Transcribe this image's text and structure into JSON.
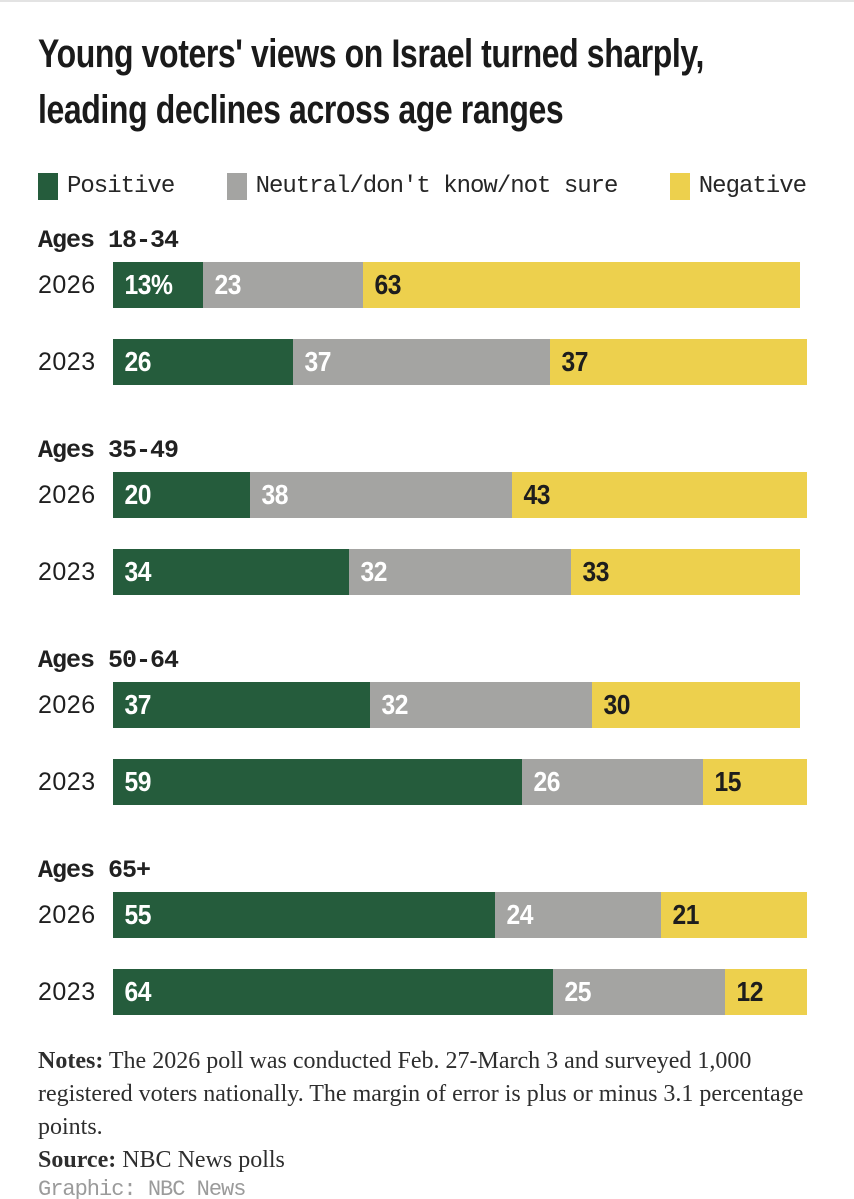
{
  "title": {
    "line1": "Young voters' views on Israel turned sharply,",
    "line2": "leading declines across age ranges"
  },
  "colors": {
    "positive": "#255c3c",
    "neutral": "#a4a4a2",
    "negative": "#edd04d",
    "label_on_dark": "#ffffff",
    "label_on_yellow": "#1d1d1d"
  },
  "legend": {
    "items": [
      {
        "key": "positive",
        "label": "Positive"
      },
      {
        "key": "neutral",
        "label": "Neutral/don't know/not sure"
      },
      {
        "key": "negative",
        "label": "Negative"
      }
    ]
  },
  "chart_data": {
    "type": "bar",
    "orientation": "horizontal",
    "stacked": true,
    "unit": "percent",
    "xlim": [
      0,
      100
    ],
    "legend_position": "top",
    "series_labels": [
      "Positive",
      "Neutral/don't know/not sure",
      "Negative"
    ],
    "groups": [
      {
        "label": "Ages 18-34",
        "rows": [
          {
            "year": "2026",
            "values": [
              13,
              23,
              63
            ],
            "display": [
              "13%",
              "23",
              "63"
            ]
          },
          {
            "year": "2023",
            "values": [
              26,
              37,
              37
            ],
            "display": [
              "26",
              "37",
              "37"
            ]
          }
        ]
      },
      {
        "label": "Ages 35-49",
        "rows": [
          {
            "year": "2026",
            "values": [
              20,
              38,
              43
            ],
            "display": [
              "20",
              "38",
              "43"
            ]
          },
          {
            "year": "2023",
            "values": [
              34,
              32,
              33
            ],
            "display": [
              "34",
              "32",
              "33"
            ]
          }
        ]
      },
      {
        "label": "Ages 50-64",
        "rows": [
          {
            "year": "2026",
            "values": [
              37,
              32,
              30
            ],
            "display": [
              "37",
              "32",
              "30"
            ]
          },
          {
            "year": "2023",
            "values": [
              59,
              26,
              15
            ],
            "display": [
              "59",
              "26",
              "15"
            ]
          }
        ]
      },
      {
        "label": "Ages 65+",
        "rows": [
          {
            "year": "2026",
            "values": [
              55,
              24,
              21
            ],
            "display": [
              "55",
              "24",
              "21"
            ]
          },
          {
            "year": "2023",
            "values": [
              64,
              25,
              12
            ],
            "display": [
              "64",
              "25",
              "12"
            ]
          }
        ]
      }
    ]
  },
  "notes": {
    "notes_label": "Notes:",
    "notes_text": "The 2026 poll was conducted Feb. 27-March 3 and surveyed 1,000 registered voters nationally. The margin of error is plus or minus 3.1 percentage points.",
    "source_label": "Source:",
    "source_text": "NBC News polls",
    "credit": "Graphic: NBC News"
  }
}
